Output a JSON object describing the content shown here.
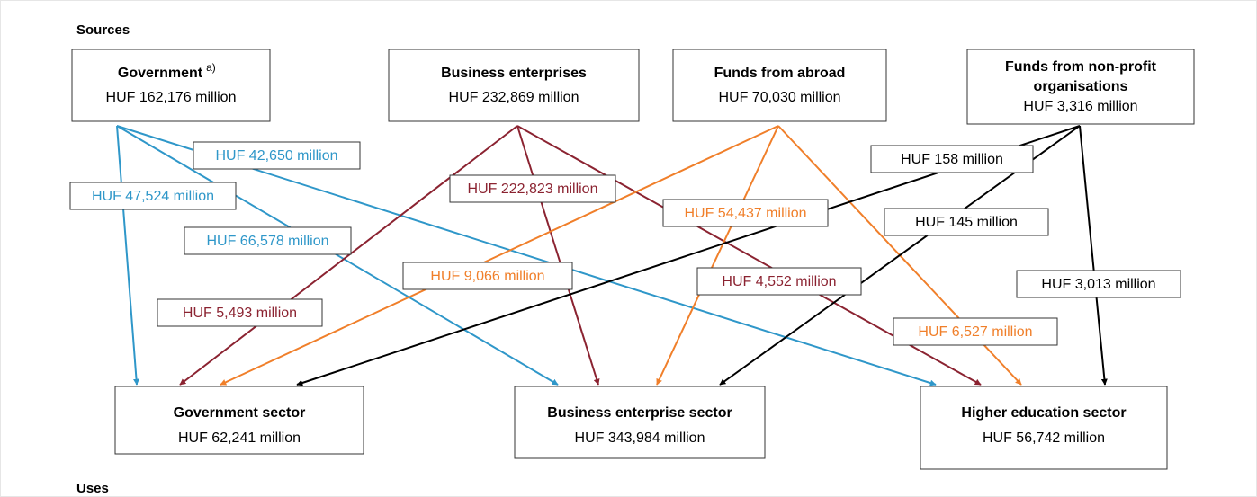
{
  "header": {
    "sources": "Sources",
    "uses": "Uses"
  },
  "sources": [
    {
      "title": [
        "Government"
      ],
      "note": "a)",
      "amount": "HUF 162,176 million",
      "flows": [
        "HUF 47,524 million",
        "HUF 66,578 million",
        "HUF 42,650 million"
      ]
    },
    {
      "title": [
        "Business enterprises"
      ],
      "amount": "HUF 232,869 million",
      "flows": [
        "HUF 5,493 million",
        "HUF 222,823 million",
        "HUF 4,552 million"
      ]
    },
    {
      "title": [
        "Funds from abroad"
      ],
      "amount": "HUF 70,030 million",
      "flows": [
        "HUF 9,066 million",
        "HUF 54,437 million",
        "HUF 6,527 million"
      ]
    },
    {
      "title": [
        "Funds from non-profit",
        "organisations"
      ],
      "amount": "HUF 3,316 million",
      "flows": [
        "HUF 158 million",
        "HUF 145 million",
        "HUF 3,013 million"
      ]
    }
  ],
  "uses": [
    {
      "title": "Government sector",
      "amount": "HUF 62,241 million"
    },
    {
      "title": "Business enterprise sector",
      "amount": "HUF 343,984 million"
    },
    {
      "title": "Higher education sector",
      "amount": "HUF 56,742 million"
    }
  ]
}
